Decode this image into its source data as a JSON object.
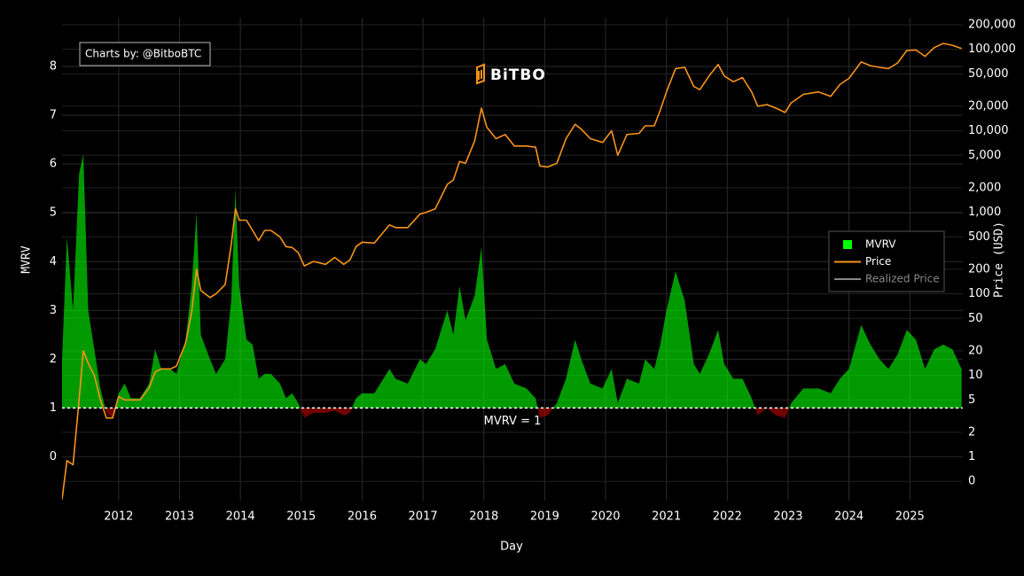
{
  "chart_data": {
    "type": "combo",
    "credit": "Charts by: @BitboBTC",
    "logo_text": "BiTBO",
    "x_label": "Day",
    "y_label": "MVRV",
    "y2_label": "Price (USD)",
    "xlim": [
      2011.07,
      2025.87
    ],
    "xticks": [
      2012,
      2013,
      2014,
      2015,
      2016,
      2017,
      2018,
      2019,
      2020,
      2021,
      2022,
      2023,
      2024,
      2025
    ],
    "ylim": [
      -0.9,
      9
    ],
    "yticks": [
      0,
      1,
      2,
      3,
      4,
      5,
      6,
      7,
      8
    ],
    "y2lim": [
      0.29,
      244000
    ],
    "y2scale": "log",
    "y2ticks": [
      {
        "value": 0.5,
        "label": "0"
      },
      1,
      2,
      5,
      10,
      20,
      50,
      100,
      200,
      500,
      {
        "value": 1000,
        "label": "1,000"
      },
      {
        "value": 2000,
        "label": "2,000"
      },
      {
        "value": 5000,
        "label": "5,000"
      },
      {
        "value": 10000,
        "label": "10,000"
      },
      {
        "value": 20000,
        "label": "20,000"
      },
      {
        "value": 50000,
        "label": "50,000"
      },
      {
        "value": 100000,
        "label": "100,000"
      },
      {
        "value": 200000,
        "label": "200,000"
      }
    ],
    "grid": true,
    "reference_line": {
      "value": 1,
      "label": "MVRV = 1"
    },
    "legend": "right",
    "x": [
      2011.07,
      2011.15,
      2011.25,
      2011.35,
      2011.42,
      2011.5,
      2011.6,
      2011.7,
      2011.8,
      2011.9,
      2012.0,
      2012.1,
      2012.2,
      2012.35,
      2012.5,
      2012.6,
      2012.7,
      2012.85,
      2012.95,
      2013.1,
      2013.2,
      2013.28,
      2013.35,
      2013.5,
      2013.6,
      2013.75,
      2013.85,
      2013.92,
      2013.98,
      2014.1,
      2014.2,
      2014.3,
      2014.4,
      2014.5,
      2014.65,
      2014.75,
      2014.85,
      2014.95,
      2015.05,
      2015.2,
      2015.4,
      2015.55,
      2015.7,
      2015.8,
      2015.9,
      2016.0,
      2016.2,
      2016.45,
      2016.55,
      2016.75,
      2016.95,
      2017.05,
      2017.2,
      2017.4,
      2017.5,
      2017.6,
      2017.7,
      2017.85,
      2017.96,
      2018.05,
      2018.2,
      2018.35,
      2018.5,
      2018.7,
      2018.85,
      2018.92,
      2019.05,
      2019.2,
      2019.35,
      2019.5,
      2019.6,
      2019.75,
      2019.95,
      2020.1,
      2020.2,
      2020.35,
      2020.55,
      2020.65,
      2020.8,
      2020.9,
      2021.0,
      2021.15,
      2021.3,
      2021.45,
      2021.55,
      2021.7,
      2021.85,
      2021.95,
      2022.1,
      2022.25,
      2022.4,
      2022.5,
      2022.65,
      2022.8,
      2022.95,
      2023.05,
      2023.25,
      2023.5,
      2023.7,
      2023.85,
      2024.0,
      2024.2,
      2024.35,
      2024.5,
      2024.65,
      2024.8,
      2024.95,
      2025.1,
      2025.25,
      2025.4,
      2025.55,
      2025.7,
      2025.85
    ],
    "series": [
      {
        "name": "MVRV",
        "type": "area",
        "color": "#00ff00",
        "below_color": "#c00000",
        "values": [
          2.0,
          4.5,
          3.0,
          5.8,
          6.2,
          3.0,
          2.2,
          1.4,
          0.9,
          0.8,
          1.3,
          1.5,
          1.2,
          1.2,
          1.5,
          2.2,
          1.8,
          1.8,
          1.7,
          2.4,
          3.5,
          5.0,
          2.5,
          2.0,
          1.7,
          2.0,
          3.2,
          5.5,
          3.5,
          2.4,
          2.3,
          1.6,
          1.7,
          1.7,
          1.5,
          1.2,
          1.3,
          1.1,
          0.8,
          0.9,
          0.9,
          0.95,
          0.85,
          0.9,
          1.2,
          1.3,
          1.3,
          1.8,
          1.6,
          1.5,
          2.0,
          1.9,
          2.2,
          3.0,
          2.5,
          3.5,
          2.8,
          3.3,
          4.3,
          2.4,
          1.8,
          1.9,
          1.5,
          1.4,
          1.2,
          0.8,
          0.85,
          1.1,
          1.6,
          2.4,
          2.0,
          1.5,
          1.4,
          1.8,
          1.1,
          1.6,
          1.5,
          2.0,
          1.8,
          2.3,
          3.0,
          3.8,
          3.2,
          1.9,
          1.7,
          2.1,
          2.6,
          1.9,
          1.6,
          1.6,
          1.2,
          0.85,
          1.0,
          0.85,
          0.8,
          1.1,
          1.4,
          1.4,
          1.3,
          1.6,
          1.8,
          2.7,
          2.3,
          2.0,
          1.8,
          2.1,
          2.6,
          2.4,
          1.8,
          2.2,
          2.3,
          2.2,
          1.8
        ]
      },
      {
        "name": "Price",
        "type": "line",
        "axis": "y2",
        "color": "#f7931a",
        "values": [
          0.3,
          0.9,
          0.8,
          5,
          20,
          14,
          10,
          5,
          3,
          3,
          5.5,
          5,
          5,
          5,
          7,
          11,
          12,
          12,
          13,
          25,
          60,
          200,
          110,
          90,
          100,
          130,
          400,
          1100,
          800,
          800,
          600,
          450,
          600,
          600,
          500,
          380,
          370,
          320,
          220,
          250,
          230,
          280,
          230,
          260,
          380,
          430,
          420,
          700,
          650,
          650,
          950,
          1000,
          1100,
          2200,
          2500,
          4200,
          4000,
          7500,
          19000,
          11000,
          8000,
          9000,
          6500,
          6500,
          6300,
          3700,
          3600,
          4000,
          8000,
          12000,
          10500,
          8000,
          7200,
          10000,
          5000,
          9000,
          9300,
          11500,
          11500,
          18000,
          30000,
          58000,
          60000,
          35000,
          32000,
          47000,
          65000,
          47000,
          40000,
          45000,
          30000,
          20000,
          21000,
          19000,
          16800,
          22000,
          28000,
          30000,
          26500,
          37000,
          44000,
          70000,
          63000,
          60000,
          58000,
          68000,
          97000,
          98000,
          82000,
          105000,
          118000,
          112000,
          102000
        ]
      },
      {
        "name": "Realized Price",
        "type": "line",
        "axis": "y2",
        "color": "#888888",
        "visible": false
      }
    ]
  }
}
